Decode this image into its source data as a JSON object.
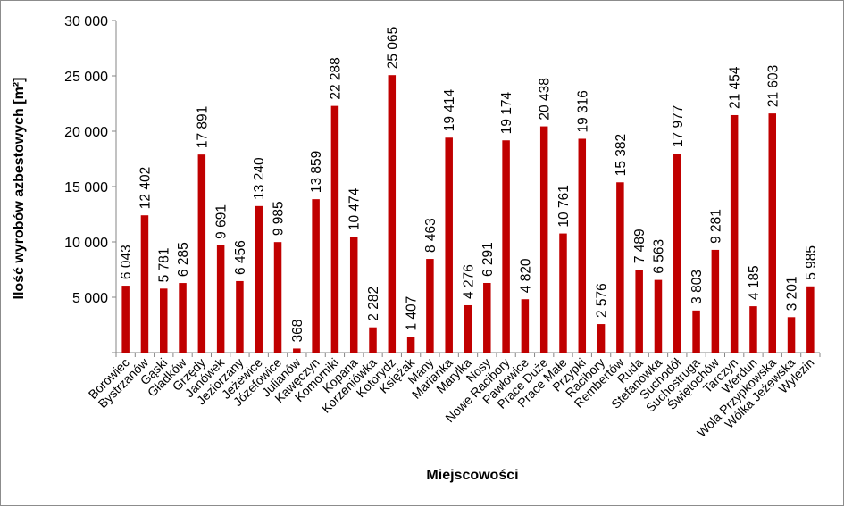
{
  "chart_data": {
    "type": "bar",
    "title": "",
    "xlabel": "Miejscowości",
    "ylabel": "Ilość wyrobów azbestowych [m²]",
    "ylim": [
      0,
      30000
    ],
    "yticks": [
      0,
      5000,
      10000,
      15000,
      20000,
      25000,
      30000
    ],
    "ytick_labels": [
      "",
      "5 000",
      "10 000",
      "15 000",
      "20 000",
      "25 000",
      "30 000"
    ],
    "grid": false,
    "legend": "none",
    "bar_color": "#c00000",
    "categories": [
      "Borowiec",
      "Bystrzanów",
      "Gąski",
      "Gładków",
      "Grzędy",
      "Janówek",
      "Jeziorzany",
      "Jeżewice",
      "Józefowice",
      "Julianów",
      "Kawęczyn",
      "Komorniki",
      "Kopana",
      "Korzeniówka",
      "Kotorydz",
      "Księżak",
      "Many",
      "Marianka",
      "Marylka",
      "Nosy",
      "Nowe Racibory",
      "Pawłowice",
      "Prace Duże",
      "Prace Małe",
      "Przypki",
      "Racibory",
      "Rembertów",
      "Ruda",
      "Stefanówka",
      "Suchodół",
      "Suchostruga",
      "Świętochów",
      "Tarczyn",
      "Werdun",
      "Wola Przypkowska",
      "Wólka Jeżewska",
      "Wylezin"
    ],
    "values": [
      6043,
      12402,
      5781,
      6285,
      17891,
      9691,
      6456,
      13240,
      9985,
      368,
      13859,
      22288,
      10474,
      2282,
      25065,
      1407,
      8463,
      19414,
      4276,
      6291,
      19174,
      4820,
      20438,
      10761,
      19316,
      2576,
      15382,
      7489,
      6563,
      17977,
      3803,
      9281,
      21454,
      4185,
      21603,
      3201,
      5985
    ],
    "data_labels": [
      "6 043",
      "12 402",
      "5 781",
      "6 285",
      "17 891",
      "9 691",
      "6 456",
      "13 240",
      "9 985",
      "368",
      "13 859",
      "22 288",
      "10 474",
      "2 282",
      "25 065",
      "1 407",
      "8 463",
      "19 414",
      "4 276",
      "6 291",
      "19 174",
      "4 820",
      "20 438",
      "10 761",
      "19 316",
      "2 576",
      "15 382",
      "7 489",
      "6 563",
      "17 977",
      "3 803",
      "9 281",
      "21 454",
      "4 185",
      "21 603",
      "3 201",
      "5 985"
    ]
  }
}
